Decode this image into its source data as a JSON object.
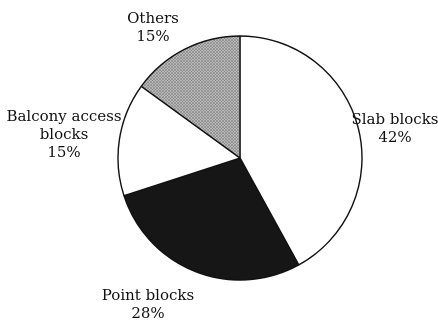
{
  "chart_data": {
    "type": "pie",
    "slices": [
      {
        "label_lines": [
          "Slab blocks",
          "42%"
        ],
        "value": 42,
        "fill": "#ffffff"
      },
      {
        "label_lines": [
          "Point blocks",
          "28%"
        ],
        "value": 28,
        "fill": "#161616"
      },
      {
        "label_lines": [
          "Balcony access",
          "blocks",
          "15%"
        ],
        "value": 15,
        "fill": "#ffffff"
      },
      {
        "label_lines": [
          "Others",
          "15%"
        ],
        "value": 15,
        "fill": "#9a9a9a"
      }
    ],
    "start_angle_deg": 0,
    "direction": "clockwise",
    "stroke_color": "#111111",
    "others_pattern": "dotted-gray"
  }
}
